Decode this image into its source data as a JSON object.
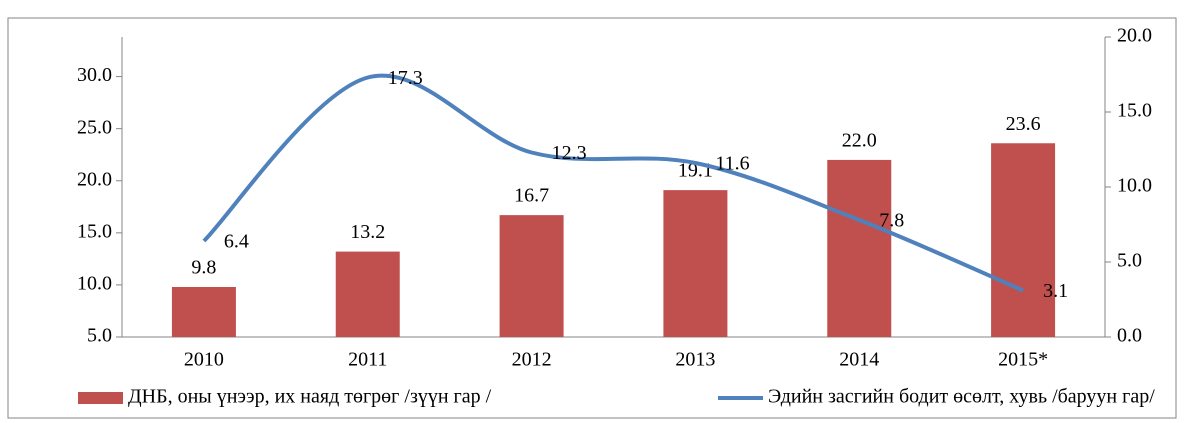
{
  "chart_data": {
    "type": "bar",
    "categories": [
      "2010",
      "2011",
      "2012",
      "2013",
      "2014",
      "2015*"
    ],
    "series": [
      {
        "name": "ДНБ, оны үнээр, их наяд төгрөг /зүүн гар /",
        "type": "bar",
        "color": "#c0504d",
        "values": [
          9.8,
          13.2,
          16.7,
          19.1,
          22.0,
          23.6
        ],
        "value_labels": [
          "9.8",
          "13.2",
          "16.7",
          "19.1",
          "22.0",
          "23.6"
        ]
      },
      {
        "name": "Эдийн засгийн бодит өсөлт, хувь /баруун гар/",
        "type": "line",
        "color": "#4f81bd",
        "axis": "y2",
        "values": [
          6.4,
          17.3,
          12.3,
          11.6,
          7.8,
          3.1
        ],
        "value_labels": [
          "6.4",
          "17.3",
          "12.3",
          "11.6",
          "7.8",
          "3.1"
        ]
      }
    ],
    "ylim": [
      5,
      33.8
    ],
    "yticks": [
      {
        "value": 5,
        "label": "5.0"
      },
      {
        "value": 10,
        "label": "10.0"
      },
      {
        "value": 15,
        "label": "15.0"
      },
      {
        "value": 20,
        "label": "20.0"
      },
      {
        "value": 25,
        "label": "25.0"
      },
      {
        "value": 30,
        "label": "30.0"
      }
    ],
    "y2lim": [
      0,
      20
    ],
    "y2ticks": [
      {
        "value": 0,
        "label": "0.0"
      },
      {
        "value": 5,
        "label": "5.0"
      },
      {
        "value": 10,
        "label": "10.0"
      },
      {
        "value": 15,
        "label": "15.0"
      },
      {
        "value": 20,
        "label": "20.0"
      }
    ],
    "legend": "bottom"
  }
}
